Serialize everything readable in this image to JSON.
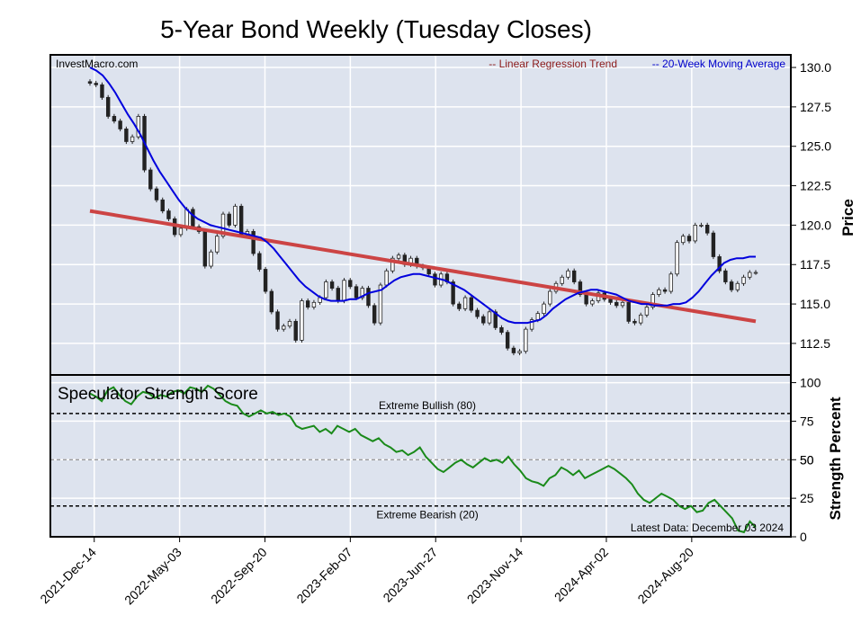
{
  "title": "5-Year Bond Weekly (Tuesday Closes)",
  "watermark": "InvestMacro.com",
  "chart_data": [
    {
      "type": "candlestick",
      "name": "price-panel",
      "ylabel": "Price",
      "ylim": [
        110.5,
        130.8
      ],
      "yticks": [
        "130.0",
        "127.5",
        "125.0",
        "122.5",
        "120.0",
        "117.5",
        "115.0",
        "112.5"
      ],
      "ytick_values": [
        130,
        127.5,
        125,
        122.5,
        120,
        117.5,
        115,
        112.5
      ],
      "grid": true,
      "legend_position": "top-right",
      "legend": [
        "-- Linear Regression Trend",
        "-- 20-Week Moving Average"
      ],
      "colors": {
        "regression": "#cc4444",
        "moving_average": "#0000dd",
        "background": "#dde3ee",
        "candle_down": "#222222",
        "candle_up": "#ffffff"
      },
      "x_start": "2021-12-07",
      "x_end": "2024-12-03",
      "x_tick_dates": [
        "2021-12-14",
        "2022-05-03",
        "2022-09-20",
        "2023-02-07",
        "2023-06-27",
        "2023-11-14",
        "2024-04-02",
        "2024-08-20"
      ],
      "x_tick_labels": [
        "2021-Dec-14",
        "2022-May-03",
        "2022-Sep-20",
        "2023-Feb-07",
        "2023-Jun-27",
        "2023-Nov-14",
        "2024-Apr-02",
        "2024-Aug-20"
      ],
      "closes": [
        129.0,
        128.9,
        128.1,
        126.9,
        126.6,
        126.1,
        125.3,
        125.6,
        126.9,
        123.5,
        122.3,
        121.6,
        120.9,
        120.4,
        119.4,
        119.8,
        121.0,
        119.9,
        119.6,
        117.4,
        118.3,
        119.3,
        120.7,
        120.0,
        121.2,
        119.4,
        119.6,
        118.2,
        117.2,
        115.8,
        114.5,
        113.4,
        113.6,
        113.9,
        112.7,
        115.2,
        114.8,
        115.1,
        115.4,
        116.4,
        116.0,
        115.2,
        116.5,
        116.1,
        115.4,
        116.0,
        114.9,
        113.8,
        116.2,
        117.1,
        117.9,
        118.1,
        117.5,
        117.9,
        117.4,
        117.3,
        116.9,
        116.2,
        116.9,
        116.4,
        115.0,
        114.7,
        115.4,
        114.6,
        114.2,
        113.8,
        114.5,
        113.5,
        113.2,
        112.2,
        111.9,
        112.0,
        113.4,
        114.0,
        114.4,
        115.0,
        115.8,
        116.3,
        116.7,
        117.1,
        116.4,
        115.6,
        115.0,
        115.2,
        115.7,
        115.3,
        115.1,
        114.9,
        115.1,
        113.9,
        113.8,
        114.3,
        114.8,
        115.6,
        115.9,
        115.8,
        116.9,
        118.9,
        119.3,
        119.0,
        120.0,
        120.0,
        119.5,
        118.0,
        117.1,
        116.4,
        115.9,
        116.3,
        116.7,
        117.0,
        117.0
      ],
      "regression": {
        "start": 120.9,
        "end": 113.9
      },
      "moving_average": [
        130.0,
        129.8,
        129.5,
        129.0,
        128.4,
        127.7,
        127.0,
        126.4,
        125.7,
        124.9,
        124.1,
        123.4,
        122.8,
        122.2,
        121.6,
        121.1,
        120.7,
        120.4,
        120.2,
        120.0,
        119.9,
        119.8,
        119.7,
        119.6,
        119.5,
        119.4,
        119.3,
        119.2,
        118.9,
        118.5,
        118.0,
        117.5,
        117.0,
        116.5,
        116.1,
        115.8,
        115.5,
        115.3,
        115.2,
        115.2,
        115.2,
        115.3,
        115.3,
        115.5,
        115.7,
        115.8,
        115.9,
        116.2,
        116.5,
        116.7,
        116.8,
        116.9,
        116.9,
        116.8,
        116.7,
        116.6,
        116.5,
        116.3,
        116.1,
        115.9,
        115.6,
        115.3,
        115.0,
        114.7,
        114.4,
        114.1,
        113.9,
        113.8,
        113.8,
        113.8,
        113.9,
        114.0,
        114.3,
        114.7,
        115.0,
        115.3,
        115.5,
        115.7,
        115.8,
        115.9,
        115.9,
        115.8,
        115.7,
        115.6,
        115.4,
        115.2,
        115.1,
        115.0,
        115.0,
        114.9,
        114.9,
        114.9,
        115.0,
        115.0,
        115.1,
        115.4,
        115.8,
        116.3,
        116.8,
        117.2,
        117.6,
        117.8,
        117.9,
        117.9,
        118.0,
        118.0
      ]
    },
    {
      "type": "line",
      "name": "speculator-strength-panel",
      "title": "Speculator Strength Score",
      "ylabel": "Strength Percent",
      "ylim": [
        0,
        105
      ],
      "yticks": [
        "100",
        "75",
        "50",
        "25",
        "0"
      ],
      "ytick_values": [
        100,
        75,
        50,
        25,
        0
      ],
      "color": "#1a8a1a",
      "reference_lines": [
        {
          "value": 80,
          "label": "Extreme Bullish (80)"
        },
        {
          "value": 50,
          "label": "50"
        },
        {
          "value": 20,
          "label": "Extreme Bearish (20)"
        }
      ],
      "latest_label": "Latest Data: December 03 2024",
      "values": [
        93,
        91,
        88,
        95,
        97,
        92,
        88,
        86,
        91,
        94,
        93,
        90,
        92,
        91,
        94,
        95,
        93,
        97,
        96,
        94,
        98,
        96,
        92,
        88,
        86,
        85,
        80,
        78,
        80,
        82,
        80,
        81,
        79,
        80,
        78,
        72,
        70,
        71,
        72,
        68,
        70,
        67,
        72,
        70,
        68,
        70,
        66,
        64,
        62,
        64,
        60,
        58,
        55,
        56,
        53,
        55,
        58,
        52,
        48,
        44,
        42,
        45,
        48,
        50,
        47,
        45,
        48,
        51,
        49,
        50,
        48,
        52,
        47,
        43,
        38,
        36,
        35,
        33,
        38,
        40,
        45,
        43,
        40,
        43,
        38,
        40,
        42,
        44,
        46,
        44,
        41,
        38,
        34,
        28,
        24,
        22,
        25,
        28,
        26,
        24,
        20,
        18,
        20,
        16,
        17,
        22,
        24,
        20,
        16,
        12,
        4,
        3,
        10,
        6
      ]
    }
  ]
}
